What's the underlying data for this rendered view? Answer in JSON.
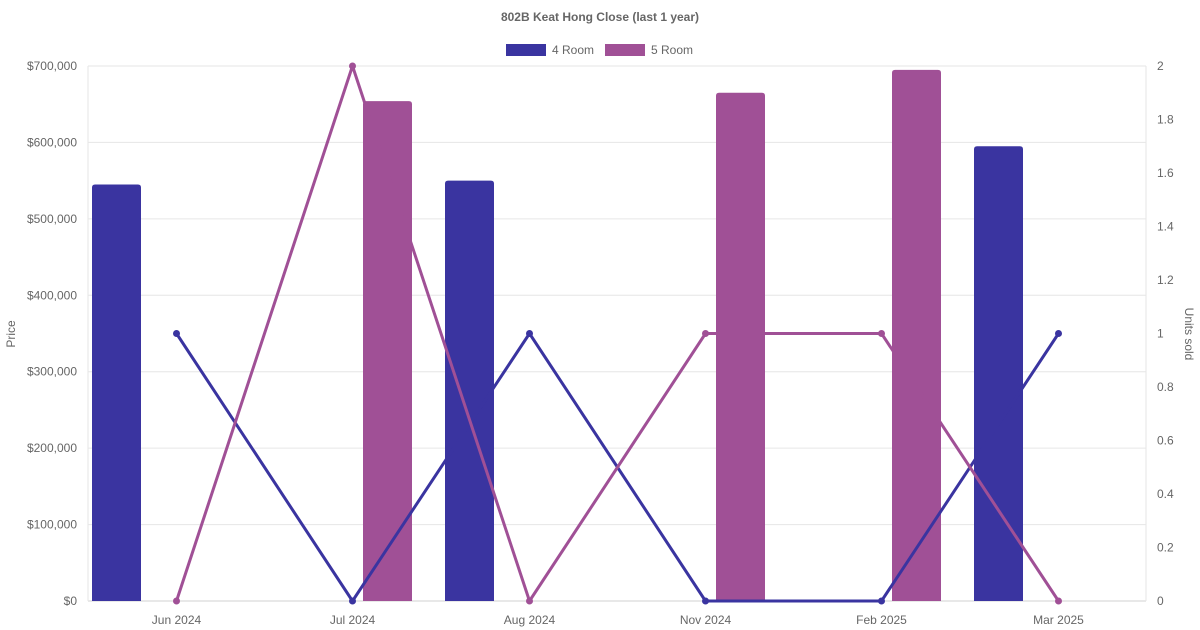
{
  "chart_data": {
    "type": "bar",
    "title": "802B Keat Hong Close (last 1 year)",
    "categories": [
      "Jun 2024",
      "Jul 2024",
      "Aug 2024",
      "Nov 2024",
      "Feb 2025",
      "Mar 2025"
    ],
    "y_left": {
      "label": "Price",
      "range": [
        0,
        700000
      ],
      "ticks": [
        "$0",
        "$100,000",
        "$200,000",
        "$300,000",
        "$400,000",
        "$500,000",
        "$600,000",
        "$700,000"
      ],
      "tick_values": [
        0,
        100000,
        200000,
        300000,
        400000,
        500000,
        600000,
        700000
      ]
    },
    "y_right": {
      "label": "Units sold",
      "range": [
        0,
        2
      ],
      "ticks": [
        "0",
        "0.2",
        "0.4",
        "0.6",
        "0.8",
        "1",
        "1.2",
        "1.4",
        "1.6",
        "1.8",
        "2"
      ],
      "tick_values": [
        0,
        0.2,
        0.4,
        0.6,
        0.8,
        1,
        1.2,
        1.4,
        1.6,
        1.8,
        2
      ]
    },
    "legend": {
      "placement": "top-center"
    },
    "grid": true,
    "series": [
      {
        "name": "4 Room",
        "color": "#3a34a0",
        "price": [
          545000,
          null,
          550000,
          null,
          null,
          595000
        ],
        "units": [
          1,
          0,
          1,
          0,
          0,
          1
        ]
      },
      {
        "name": "5 Room",
        "color": "#a05096",
        "price": [
          null,
          654000,
          null,
          665000,
          695000,
          null
        ],
        "units": [
          0,
          2,
          0,
          1,
          1,
          0
        ]
      }
    ]
  }
}
